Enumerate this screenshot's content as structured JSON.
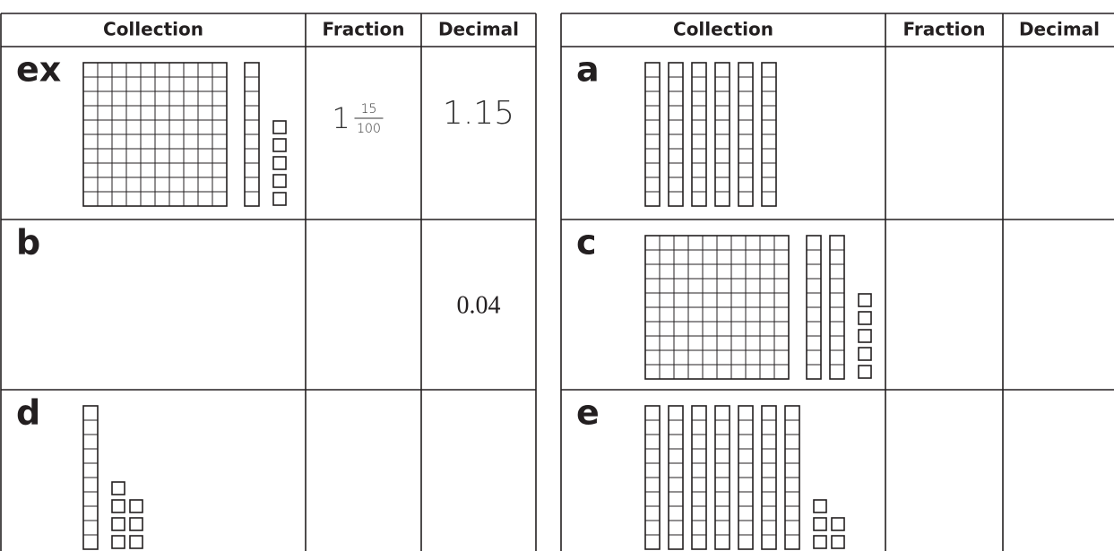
{
  "tables": [
    {
      "headers": [
        "Collection",
        "Fraction",
        "Decimal"
      ],
      "rows": [
        {
          "label": "ex",
          "blocks": {
            "flats": 1,
            "rods": 1,
            "units": 5
          },
          "fraction": {
            "whole": "1",
            "numerator": "15",
            "denominator": "100"
          },
          "decimal": "1.15"
        },
        {
          "label": "b",
          "decimal": "0.04"
        },
        {
          "label": "d",
          "blocks": {
            "flats": 0,
            "rods": 1,
            "units": 7
          }
        }
      ]
    },
    {
      "headers": [
        "Collection",
        "Fraction",
        "Decimal"
      ],
      "rows": [
        {
          "label": "a",
          "blocks": {
            "flats": 0,
            "rods": 6,
            "units": 0
          }
        },
        {
          "label": "c",
          "blocks": {
            "flats": 1,
            "rods": 2,
            "units": 5
          }
        },
        {
          "label": "e",
          "blocks": {
            "flats": 0,
            "rods": 7,
            "units": 5
          }
        }
      ]
    }
  ]
}
